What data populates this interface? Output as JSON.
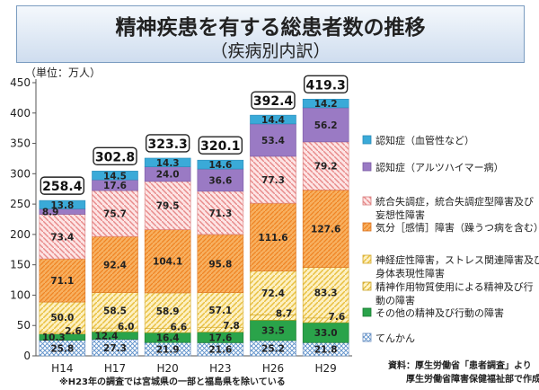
{
  "title": "精神疾患を有する総患者数の推移",
  "subtitle": "（疾病別内訳）",
  "unit_label": "（単位：万人）",
  "note": "※H23年の調査では宮城県の一部と福島県を除いている",
  "source_line1": "資料：厚生労働省「患者調査」より",
  "source_line2": "厚生労働省障害保健福祉部で作成",
  "colors": {
    "epilepsy": "#6aa0d8",
    "other": "#2aa34a",
    "drug": "#f2d35a",
    "neurotic": "#f0a24a",
    "mood": "#f07a2a",
    "schizo": "#f2a2a2",
    "alzheimer": "#9a7ac4",
    "vascular": "#3aaad8"
  },
  "chart_data": {
    "type": "bar",
    "stacked": true,
    "categories": [
      "H14",
      "H17",
      "H20",
      "H23",
      "H26",
      "H29"
    ],
    "ylim": [
      0,
      450
    ],
    "yticks": [
      0,
      50,
      100,
      150,
      200,
      250,
      300,
      350,
      400,
      450
    ],
    "grid": false,
    "legend_position": "right",
    "series": [
      {
        "key": "epilepsy",
        "name": "てんかん",
        "values": [
          25.8,
          27.3,
          21.9,
          21.6,
          25.2,
          21.8
        ]
      },
      {
        "key": "other",
        "name": "その他の精神及び行動の障害",
        "values": [
          10.3,
          12.4,
          16.4,
          17.6,
          33.5,
          33.0
        ]
      },
      {
        "key": "drug",
        "name": "精神作用物質使用による精神及び行動の障害",
        "values": [
          2.6,
          6.0,
          6.6,
          7.8,
          8.7,
          7.6
        ]
      },
      {
        "key": "neurotic",
        "name": "神経症性障害，ストレス関連障害及び身体表現性障害",
        "values": [
          50.0,
          58.5,
          58.9,
          57.1,
          72.4,
          83.3
        ]
      },
      {
        "key": "mood",
        "name": "気分［感情］障害（躁うつ病を含む）",
        "values": [
          71.1,
          92.4,
          104.1,
          95.8,
          111.6,
          127.6
        ]
      },
      {
        "key": "schizo",
        "name": "統合失調症，統合失調症型障害及び妄想性障害",
        "values": [
          73.4,
          75.7,
          79.5,
          71.3,
          77.3,
          79.2
        ]
      },
      {
        "key": "alzheimer",
        "name": "認知症（アルツハイマー病）",
        "values": [
          8.9,
          17.6,
          24.0,
          36.6,
          53.4,
          56.2
        ]
      },
      {
        "key": "vascular",
        "name": "認知症（血管性など）",
        "values": [
          13.8,
          14.5,
          14.3,
          14.6,
          14.4,
          14.2
        ]
      }
    ],
    "totals": [
      258.4,
      302.8,
      323.3,
      320.1,
      392.4,
      419.3
    ],
    "legend_order": [
      "vascular",
      "alzheimer",
      "schizo",
      "mood",
      "neurotic",
      "drug",
      "other",
      "epilepsy"
    ]
  }
}
